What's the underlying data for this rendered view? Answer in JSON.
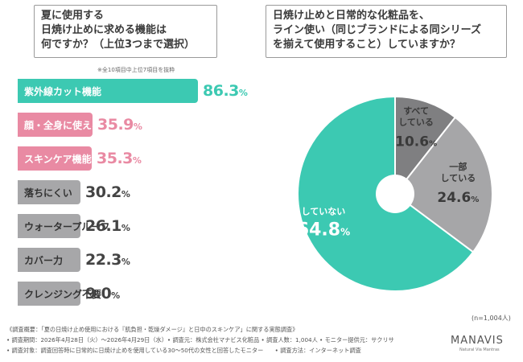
{
  "left_title": {
    "lines": [
      "夏に使用する",
      "日焼け止めに求める機能は",
      "何ですか？（上位3つまで選択）"
    ]
  },
  "bar_note": "※全10項目中上位7項目を抜粋",
  "right_title": {
    "lines": [
      "日焼け止めと日常的な化粧品を、",
      "ライン使い（同じブランドによる同シリーズ",
      "を揃えて使用すること）していますか？"
    ]
  },
  "pie_n": "(n=1,004人)",
  "footer": {
    "line1": "《調査概要：「夏の日焼け止め使用における『肌負担・乾燥ダメージ』と日中のスキンケア」に関する実態調査》",
    "line2": "• 調査期間：2026年4月28日（火）～2026年4月29日（水）• 調査元：株式会社マナビス化粧品 • 調査人数：1,004人 • モニター提供元：サクリサ",
    "line3": "• 調査対象：調査回答時に日常的に日焼け止めを使用している30～50代の女性と回答したモニター　　• 調査方法：インターネット調査"
  },
  "logo": {
    "name": "MANAVIS",
    "sub": "Natural Via Mantras"
  },
  "colors": {
    "teal": "#3cc9b2",
    "pink": "#e98aa3",
    "gray": "#a7a7a9",
    "pie_gray": "#a6a6a8",
    "pie_dark": "#7f7f81"
  },
  "chart_data": [
    {
      "type": "bar",
      "orientation": "horizontal",
      "categories": [
        "紫外線カット機能",
        "顔・全身に使える",
        "スキンケア機能",
        "落ちにくい",
        "ウォータープルーフ",
        "カバー力",
        "クレンジング不要"
      ],
      "values": [
        86.3,
        35.9,
        35.3,
        30.2,
        26.1,
        22.3,
        9.0
      ],
      "value_labels": [
        "86.3",
        "35.9",
        "35.3",
        "30.2",
        "26.1",
        "22.3",
        "9.0"
      ],
      "unit": "%",
      "color_groups": [
        "teal",
        "pink",
        "pink",
        "gray",
        "gray",
        "gray",
        "gray"
      ]
    },
    {
      "type": "pie",
      "labels": [
        "すべて\nしている",
        "一部\nしている",
        "していない"
      ],
      "values": [
        10.6,
        24.6,
        64.8
      ],
      "value_labels": [
        "10.6",
        "24.6",
        "64.8"
      ],
      "unit": "%",
      "colors": [
        "#7f7f81",
        "#a6a6a8",
        "#3cc9b2"
      ]
    }
  ]
}
